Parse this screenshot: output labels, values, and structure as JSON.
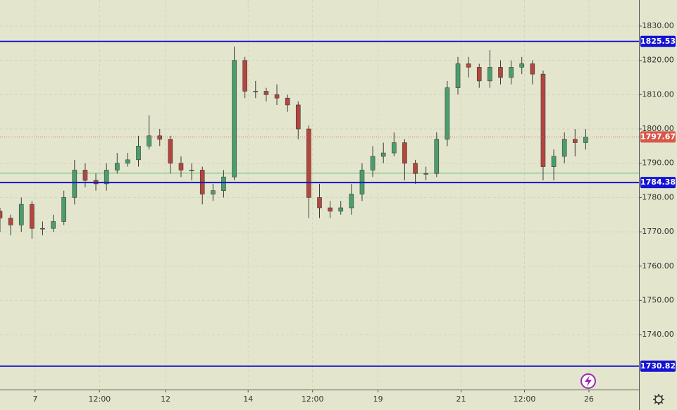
{
  "chart_data": {
    "type": "candlestick",
    "x": [
      0,
      2,
      4,
      6,
      8,
      10,
      12,
      14,
      16,
      18,
      20,
      22,
      24,
      26,
      28,
      30,
      32,
      34,
      36,
      38,
      40,
      42,
      44,
      46,
      48,
      50,
      52,
      54,
      56,
      58,
      60,
      62,
      64,
      66,
      68,
      70,
      72,
      74,
      76,
      78,
      80,
      82,
      84,
      86,
      88,
      90,
      92,
      94,
      96,
      98,
      100,
      102,
      104,
      106,
      108,
      110
    ],
    "open": [
      1776,
      1774,
      1772,
      1778,
      1771,
      1771,
      1773,
      1780,
      1788,
      1785,
      1784,
      1788,
      1790,
      1791,
      1795,
      1798,
      1797,
      1790,
      1788,
      1788,
      1781,
      1782,
      1786,
      1820,
      1811,
      1811,
      1810,
      1809,
      1807,
      1800,
      1780,
      1777,
      1776,
      1777,
      1781,
      1788,
      1792,
      1793,
      1796,
      1790,
      1787,
      1787,
      1797,
      1812,
      1819,
      1818,
      1814,
      1818,
      1815,
      1818,
      1819,
      1816,
      1789,
      1792,
      1797,
      1796
    ],
    "high": [
      1777,
      1775,
      1780,
      1779,
      1773,
      1775,
      1782,
      1791,
      1790,
      1787,
      1790,
      1793,
      1793,
      1798,
      1804,
      1800,
      1798,
      1792,
      1790,
      1789,
      1784,
      1788,
      1824,
      1821,
      1814,
      1812,
      1813,
      1810,
      1808,
      1801,
      1784,
      1779,
      1779,
      1784,
      1790,
      1795,
      1796,
      1799,
      1797,
      1791,
      1789,
      1799,
      1814,
      1821,
      1821,
      1819,
      1823,
      1820,
      1820,
      1821,
      1820,
      1817,
      1794,
      1799,
      1800,
      1800
    ],
    "low": [
      1770,
      1769,
      1770,
      1768,
      1769,
      1770,
      1772,
      1778,
      1783,
      1782,
      1782,
      1787,
      1789,
      1789,
      1794,
      1795,
      1787,
      1786,
      1785,
      1778,
      1779,
      1780,
      1785,
      1809,
      1809,
      1808,
      1807,
      1805,
      1797,
      1774,
      1774,
      1774,
      1775,
      1775,
      1779,
      1786,
      1790,
      1792,
      1785,
      1784,
      1785,
      1786,
      1795,
      1810,
      1815,
      1812,
      1812,
      1813,
      1813,
      1816,
      1813,
      1785,
      1785,
      1790,
      1792,
      1794
    ],
    "close": [
      1774,
      1772,
      1778,
      1771,
      1771,
      1773,
      1780,
      1788,
      1785,
      1784,
      1788,
      1790,
      1791,
      1795,
      1798,
      1797,
      1790,
      1788,
      1788,
      1781,
      1782,
      1786,
      1820,
      1811,
      1811,
      1810,
      1809,
      1807,
      1800,
      1780,
      1777,
      1776,
      1777,
      1781,
      1788,
      1792,
      1793,
      1796,
      1790,
      1787,
      1787,
      1797,
      1812,
      1819,
      1818,
      1814,
      1818,
      1815,
      1818,
      1819,
      1816,
      1789,
      1792,
      1797,
      1796,
      1797.67
    ],
    "up_color": "#4a9e6e",
    "down_color": "#b5453d",
    "levels": [
      1825.53,
      1784.38,
      1730.82
    ],
    "level_color": "#1414d2",
    "reference_line": 1787.1,
    "reference_color": "#5fbf7f",
    "last_price_color": "#d9564b",
    "xlim": [
      0,
      120
    ],
    "ylim": [
      1724,
      1837.6
    ],
    "xticks": [
      {
        "value": 6.6,
        "label": "7"
      },
      {
        "value": 18.7,
        "label": "12:00"
      },
      {
        "value": 31.1,
        "label": "12"
      },
      {
        "value": 46.6,
        "label": "14"
      },
      {
        "value": 58.7,
        "label": "12:00"
      },
      {
        "value": 71.0,
        "label": "19"
      },
      {
        "value": 86.6,
        "label": "21"
      },
      {
        "value": 98.5,
        "label": "12:00"
      },
      {
        "value": 110.6,
        "label": "26"
      }
    ],
    "yticks": [
      {
        "value": 1740,
        "label": "1740.00"
      },
      {
        "value": 1750,
        "label": "1750.00"
      },
      {
        "value": 1760,
        "label": "1760.00"
      },
      {
        "value": 1770,
        "label": "1770.00"
      },
      {
        "value": 1780,
        "label": "1780.00"
      },
      {
        "value": 1790,
        "label": "1790.00"
      },
      {
        "value": 1800,
        "label": "1800.00"
      },
      {
        "value": 1810,
        "label": "1810.00"
      },
      {
        "value": 1820,
        "label": "1820.00"
      },
      {
        "value": 1830,
        "label": "1830.00"
      }
    ],
    "grid": true
  }
}
